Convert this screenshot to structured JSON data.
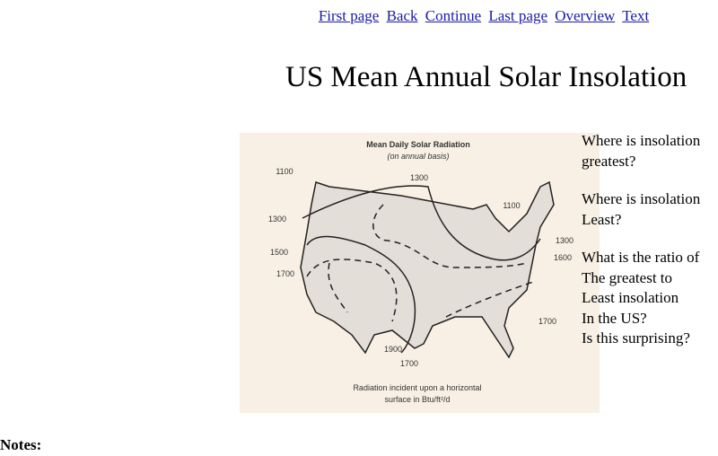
{
  "nav": [
    "First page",
    "Back",
    "Continue",
    "Last page",
    "Overview",
    "Text"
  ],
  "title": "US Mean Annual Solar Insolation",
  "figure": {
    "title": "Mean Daily Solar Radiation",
    "subtitle": "(on annual basis)",
    "contour_labels": [
      "1100",
      "1300",
      "1300",
      "1100",
      "1300",
      "1500",
      "1600",
      "1700",
      "1700",
      "1900",
      "1700"
    ],
    "caption": [
      "Radiation incident upon a horizontal",
      "surface in Btu/ft²/d"
    ]
  },
  "questions": [
    [
      "Where is insolation",
      "greatest?"
    ],
    [
      "Where is insolation",
      "Least?"
    ],
    [
      "What is the ratio of",
      "The greatest to",
      "Least insolation",
      "In the US?",
      "Is this surprising?"
    ]
  ],
  "notes": "Notes:"
}
